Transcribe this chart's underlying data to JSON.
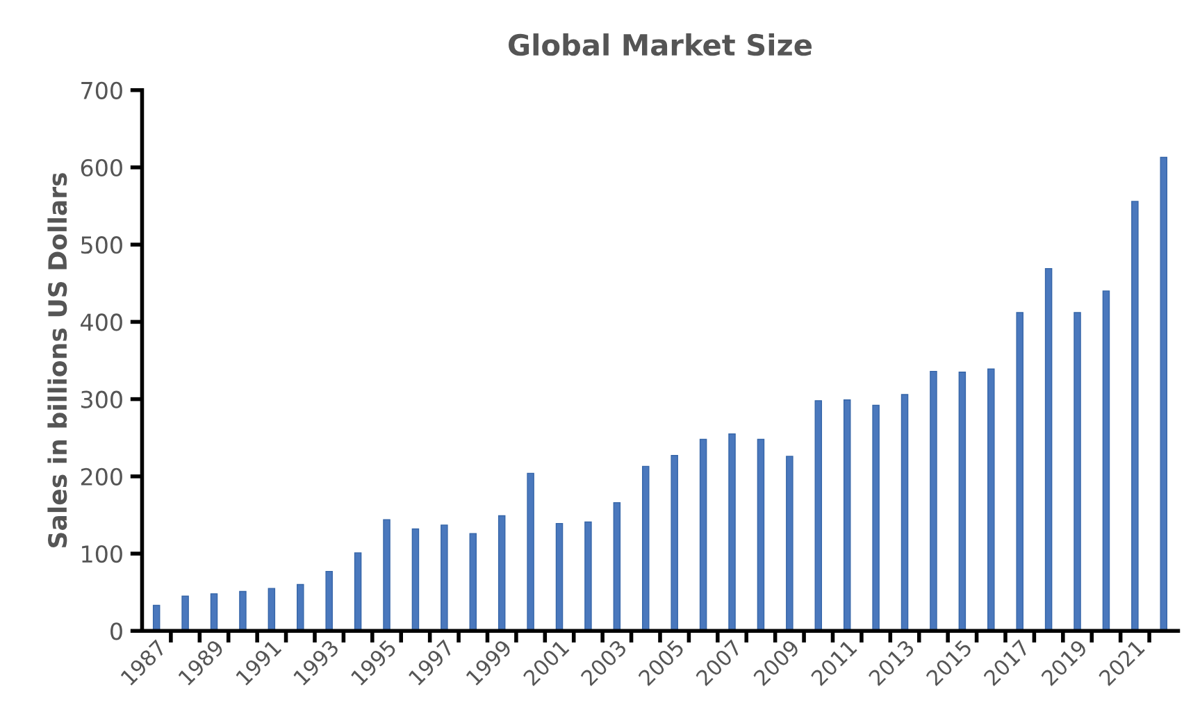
{
  "chart_data": {
    "type": "bar",
    "title": "Global Market Size",
    "ylabel": "Sales in billions US Dollars",
    "categories": [
      "1987",
      null,
      "1989",
      null,
      "1991",
      null,
      "1993",
      null,
      "1995",
      null,
      "1997",
      null,
      "1999",
      null,
      "2001",
      null,
      "2003",
      null,
      "2005",
      null,
      "2007",
      null,
      "2009",
      null,
      "2011",
      null,
      "2013",
      null,
      "2015",
      null,
      "2017",
      null,
      "2019",
      null,
      "2021",
      null
    ],
    "values": [
      33,
      45,
      48,
      51,
      55,
      60,
      77,
      101,
      144,
      132,
      137,
      126,
      149,
      204,
      139,
      141,
      166,
      213,
      227,
      248,
      255,
      248,
      226,
      298,
      299,
      292,
      306,
      336,
      335,
      339,
      412,
      469,
      412,
      440,
      556,
      613
    ],
    "color": "#4a78bd",
    "ylim": [
      0,
      700
    ],
    "yticks": [
      0,
      100,
      200,
      300,
      400,
      500,
      600,
      700
    ],
    "grid": false,
    "legend": false
  }
}
